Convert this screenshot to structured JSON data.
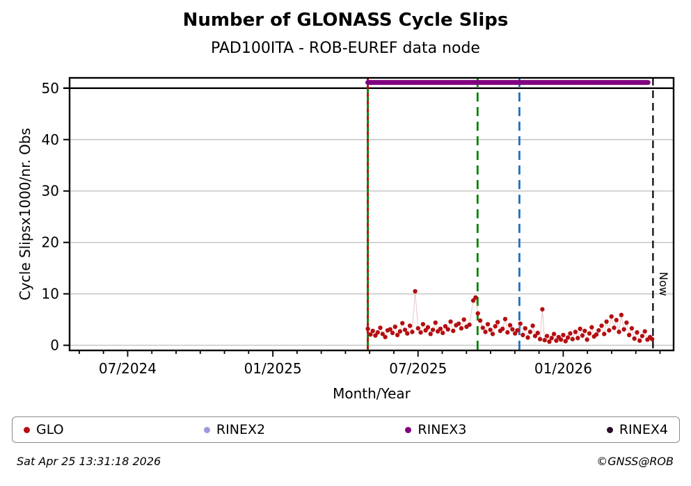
{
  "header": {
    "title": "Number of GLONASS Cycle Slips",
    "subtitle": "PAD100ITA - ROB-EUREF data node"
  },
  "footer": {
    "timestamp": "Sat Apr 25 13:31:18 2026",
    "copyright": "©GNSS@ROB"
  },
  "legend": {
    "items": [
      {
        "label": "GLO",
        "color": "#b40e11"
      },
      {
        "label": "RINEX2",
        "color": "#9b99dd"
      },
      {
        "label": "RINEX3",
        "color": "#800080"
      },
      {
        "label": "RINEX4",
        "color": "#2b0b28"
      }
    ]
  },
  "chart_data": {
    "type": "scatter",
    "title": "Number of GLONASS Cycle Slips",
    "subtitle": "PAD100ITA - ROB-EUREF data node",
    "xlabel": "Month/Year",
    "ylabel": "Cycle Slipsx1000/nr. Obs",
    "xlim": [
      2024.3,
      2026.38
    ],
    "ylim": [
      -1,
      52
    ],
    "grid": "horizontal",
    "grid_color": "#c3c3c3",
    "x_ticks": [
      {
        "t": 2024.5,
        "label": "07/2024"
      },
      {
        "t": 2025.0,
        "label": "01/2025"
      },
      {
        "t": 2025.5,
        "label": "07/2025"
      },
      {
        "t": 2026.0,
        "label": "01/2026"
      }
    ],
    "x_minor_tick_step_years": 0.08333,
    "x_minor_tick_start": 2024.33333,
    "y_ticks": [
      0,
      10,
      20,
      30,
      40,
      50
    ],
    "hline": {
      "y": 50,
      "color": "#000000"
    },
    "vlines": [
      {
        "t": 2025.327,
        "style": "solid",
        "color": "#008000",
        "overlay_dash_color": "#cc0000",
        "label": ""
      },
      {
        "t": 2025.705,
        "style": "dashed",
        "color": "#008000",
        "label": ""
      },
      {
        "t": 2025.849,
        "style": "dashed",
        "color": "#1e6fbf",
        "label": ""
      },
      {
        "t": 2026.309,
        "style": "dashed",
        "color": "#000000",
        "label": "Now"
      }
    ],
    "series": [
      {
        "name": "GLO",
        "color": "#b40e11",
        "connector_color": "#e7bdbd",
        "points": [
          [
            2025.327,
            3.2
          ],
          [
            2025.336,
            2.1
          ],
          [
            2025.344,
            2.8
          ],
          [
            2025.353,
            1.9
          ],
          [
            2025.361,
            2.5
          ],
          [
            2025.37,
            3.4
          ],
          [
            2025.378,
            2.2
          ],
          [
            2025.387,
            1.6
          ],
          [
            2025.395,
            2.9
          ],
          [
            2025.404,
            3.1
          ],
          [
            2025.412,
            2.4
          ],
          [
            2025.421,
            3.6
          ],
          [
            2025.429,
            2.0
          ],
          [
            2025.438,
            2.7
          ],
          [
            2025.446,
            4.3
          ],
          [
            2025.455,
            3.0
          ],
          [
            2025.463,
            2.3
          ],
          [
            2025.472,
            3.8
          ],
          [
            2025.48,
            2.6
          ],
          [
            2025.49,
            10.5
          ],
          [
            2025.5,
            3.3
          ],
          [
            2025.509,
            2.5
          ],
          [
            2025.517,
            4.1
          ],
          [
            2025.526,
            2.9
          ],
          [
            2025.534,
            3.5
          ],
          [
            2025.543,
            2.2
          ],
          [
            2025.551,
            3.0
          ],
          [
            2025.56,
            4.4
          ],
          [
            2025.568,
            2.7
          ],
          [
            2025.577,
            3.2
          ],
          [
            2025.585,
            2.4
          ],
          [
            2025.594,
            3.7
          ],
          [
            2025.603,
            3.1
          ],
          [
            2025.612,
            4.6
          ],
          [
            2025.621,
            2.8
          ],
          [
            2025.631,
            3.9
          ],
          [
            2025.64,
            4.2
          ],
          [
            2025.649,
            3.3
          ],
          [
            2025.658,
            5.0
          ],
          [
            2025.667,
            3.6
          ],
          [
            2025.677,
            4.0
          ],
          [
            2025.69,
            8.7
          ],
          [
            2025.698,
            9.3
          ],
          [
            2025.706,
            6.2
          ],
          [
            2025.714,
            4.8
          ],
          [
            2025.723,
            3.4
          ],
          [
            2025.732,
            2.6
          ],
          [
            2025.74,
            4.1
          ],
          [
            2025.749,
            3.0
          ],
          [
            2025.757,
            2.2
          ],
          [
            2025.766,
            3.7
          ],
          [
            2025.774,
            4.5
          ],
          [
            2025.783,
            2.8
          ],
          [
            2025.791,
            3.2
          ],
          [
            2025.8,
            5.1
          ],
          [
            2025.808,
            2.5
          ],
          [
            2025.817,
            3.9
          ],
          [
            2025.825,
            3.1
          ],
          [
            2025.834,
            2.3
          ],
          [
            2025.842,
            2.9
          ],
          [
            2025.852,
            4.2
          ],
          [
            2025.861,
            2.0
          ],
          [
            2025.869,
            3.3
          ],
          [
            2025.878,
            1.5
          ],
          [
            2025.886,
            2.6
          ],
          [
            2025.895,
            3.8
          ],
          [
            2025.903,
            1.8
          ],
          [
            2025.912,
            2.4
          ],
          [
            2025.92,
            1.2
          ],
          [
            2025.928,
            7.0
          ],
          [
            2025.936,
            1.0
          ],
          [
            2025.944,
            1.8
          ],
          [
            2025.952,
            0.7
          ],
          [
            2025.96,
            1.4
          ],
          [
            2025.968,
            2.2
          ],
          [
            2025.976,
            0.9
          ],
          [
            2025.984,
            1.6
          ],
          [
            2025.992,
            1.1
          ],
          [
            2026.0,
            2.0
          ],
          [
            2026.008,
            0.8
          ],
          [
            2026.016,
            1.5
          ],
          [
            2026.024,
            2.3
          ],
          [
            2026.032,
            1.2
          ],
          [
            2026.042,
            2.6
          ],
          [
            2026.05,
            1.4
          ],
          [
            2026.058,
            3.2
          ],
          [
            2026.066,
            1.9
          ],
          [
            2026.074,
            2.8
          ],
          [
            2026.082,
            1.1
          ],
          [
            2026.09,
            2.3
          ],
          [
            2026.098,
            3.5
          ],
          [
            2026.106,
            1.7
          ],
          [
            2026.114,
            2.1
          ],
          [
            2026.122,
            2.9
          ],
          [
            2026.132,
            3.8
          ],
          [
            2026.141,
            2.2
          ],
          [
            2026.149,
            4.6
          ],
          [
            2026.158,
            2.9
          ],
          [
            2026.166,
            5.6
          ],
          [
            2026.175,
            3.4
          ],
          [
            2026.183,
            4.9
          ],
          [
            2026.192,
            2.6
          ],
          [
            2026.2,
            5.9
          ],
          [
            2026.209,
            3.1
          ],
          [
            2026.218,
            4.4
          ],
          [
            2026.227,
            2.0
          ],
          [
            2026.236,
            3.3
          ],
          [
            2026.245,
            1.3
          ],
          [
            2026.254,
            2.5
          ],
          [
            2026.263,
            0.9
          ],
          [
            2026.272,
            1.8
          ],
          [
            2026.281,
            2.7
          ],
          [
            2026.29,
            1.1
          ],
          [
            2026.299,
            1.6
          ],
          [
            2026.306,
            1.2
          ]
        ]
      },
      {
        "name": "RINEX2",
        "color": "#9b99dd",
        "points": []
      },
      {
        "name": "RINEX3",
        "color": "#800080",
        "segment": {
          "y": 51.1,
          "t0": 2025.327,
          "t1": 2026.292
        }
      },
      {
        "name": "RINEX4",
        "color": "#2b0b28",
        "points": []
      }
    ]
  }
}
